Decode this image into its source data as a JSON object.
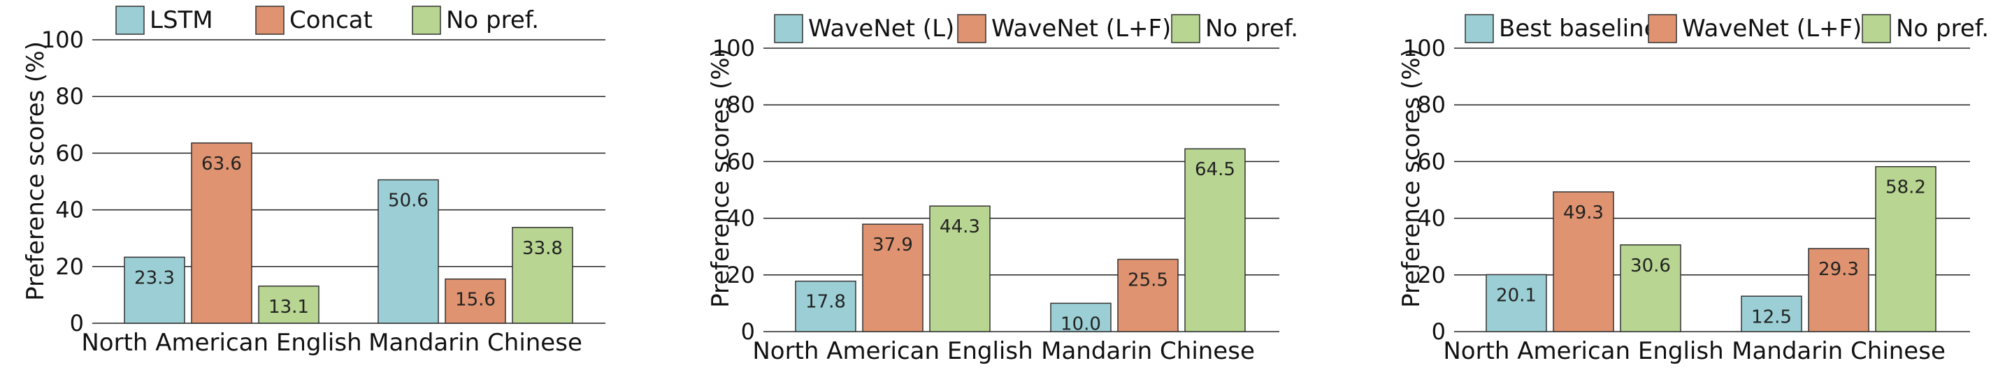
{
  "colors": {
    "blue": "#9ccfd5",
    "orange": "#df9370",
    "green": "#b8d591"
  },
  "chart_data": [
    {
      "type": "bar",
      "categories": [
        "North American English",
        "Mandarin Chinese"
      ],
      "series": [
        {
          "name": "LSTM",
          "values": [
            23.3,
            50.6
          ]
        },
        {
          "name": "Concat",
          "values": [
            63.6,
            15.6
          ]
        },
        {
          "name": "No pref.",
          "values": [
            13.1,
            33.8
          ]
        }
      ],
      "ylabel": "Preference scores (%)",
      "yticks": [
        "0",
        "20",
        "40",
        "60",
        "80",
        "100"
      ],
      "ylim": [
        0,
        100
      ],
      "grid": true,
      "legend": "top"
    },
    {
      "type": "bar",
      "categories": [
        "North American English",
        "Mandarin Chinese"
      ],
      "series": [
        {
          "name": "WaveNet (L)",
          "values": [
            17.8,
            10.0
          ]
        },
        {
          "name": "WaveNet (L+F)",
          "values": [
            37.9,
            25.5
          ]
        },
        {
          "name": "No pref.",
          "values": [
            44.3,
            64.5
          ]
        }
      ],
      "ylabel": "Preference scores (%)",
      "yticks": [
        "0",
        "20",
        "40",
        "60",
        "80",
        "100"
      ],
      "ylim": [
        0,
        100
      ],
      "grid": true,
      "legend": "top"
    },
    {
      "type": "bar",
      "categories": [
        "North American English",
        "Mandarin Chinese"
      ],
      "series": [
        {
          "name": "Best baseline",
          "values": [
            20.1,
            12.5
          ]
        },
        {
          "name": "WaveNet (L+F)",
          "values": [
            49.3,
            29.3
          ]
        },
        {
          "name": "No pref.",
          "values": [
            30.6,
            58.2
          ]
        }
      ],
      "ylabel": "Preference scores (%)",
      "yticks": [
        "0",
        "20",
        "40",
        "60",
        "80",
        "100"
      ],
      "ylim": [
        0,
        100
      ],
      "grid": true,
      "legend": "top"
    }
  ]
}
